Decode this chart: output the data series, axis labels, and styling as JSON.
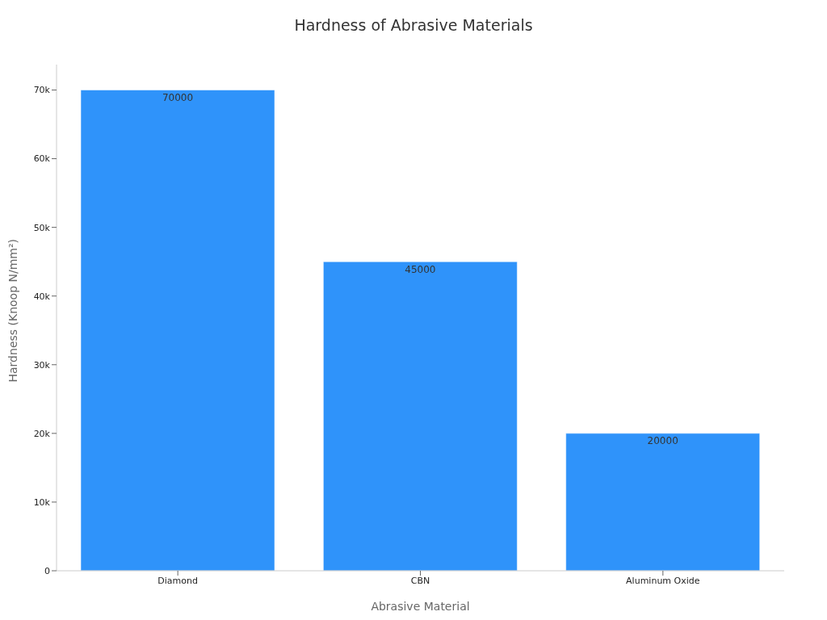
{
  "chart_data": {
    "type": "bar",
    "title": "Hardness of Abrasive Materials",
    "xlabel": "Abrasive Material",
    "ylabel": "Hardness (Knoop N/mm²)",
    "categories": [
      "Diamond",
      "CBN",
      "Aluminum Oxide"
    ],
    "values": [
      70000,
      45000,
      20000
    ],
    "color": "#2f93fa",
    "ylim": [
      0,
      73700
    ],
    "yticks": [
      0,
      {
        "value": 10000,
        "label": "10k"
      },
      {
        "value": 20000,
        "label": "20k"
      },
      {
        "value": 30000,
        "label": "30k"
      },
      {
        "value": 40000,
        "label": "40k"
      },
      {
        "value": 50000,
        "label": "50k"
      },
      {
        "value": 60000,
        "label": "60k"
      },
      {
        "value": 70000,
        "label": "70k"
      }
    ],
    "data_labels": true,
    "grid": false,
    "legend": false
  }
}
